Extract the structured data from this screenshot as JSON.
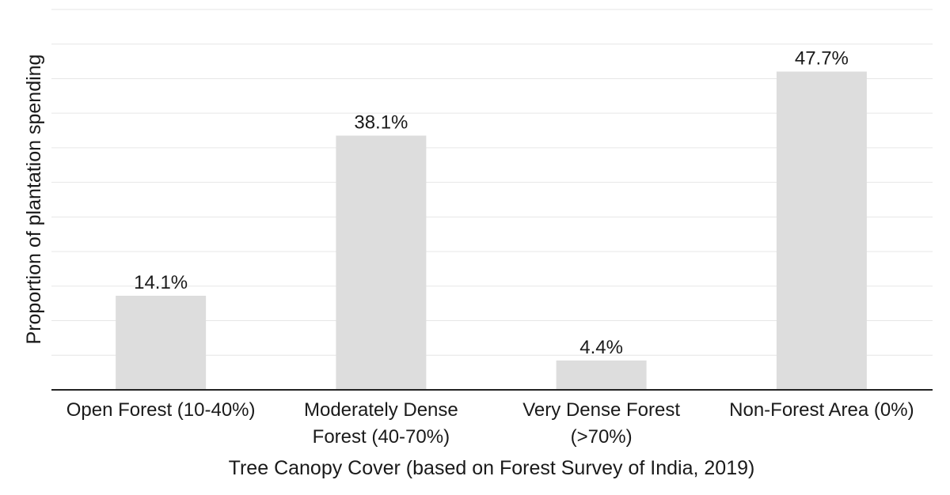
{
  "chart_data": {
    "type": "bar",
    "categories": [
      [
        "Open Forest (10-40%)"
      ],
      [
        "Moderately Dense",
        "Forest (40-70%)"
      ],
      [
        "Very Dense Forest",
        "(>70%)"
      ],
      [
        "Non-Forest Area (0%)"
      ]
    ],
    "values": [
      14.1,
      38.1,
      4.4,
      47.7
    ],
    "value_labels": [
      "14.1%",
      "38.1%",
      "4.4%",
      "47.7%"
    ],
    "xlabel": "Tree Canopy Cover (based on Forest Survey of India, 2019)",
    "ylabel": "Proportion of plantation spending",
    "ylim": [
      0,
      57
    ],
    "grid": true,
    "colors": {
      "bar": "#dddddd",
      "grid": "#e6e6e6",
      "axis": "#222222",
      "text": "#1a1a1a"
    }
  }
}
